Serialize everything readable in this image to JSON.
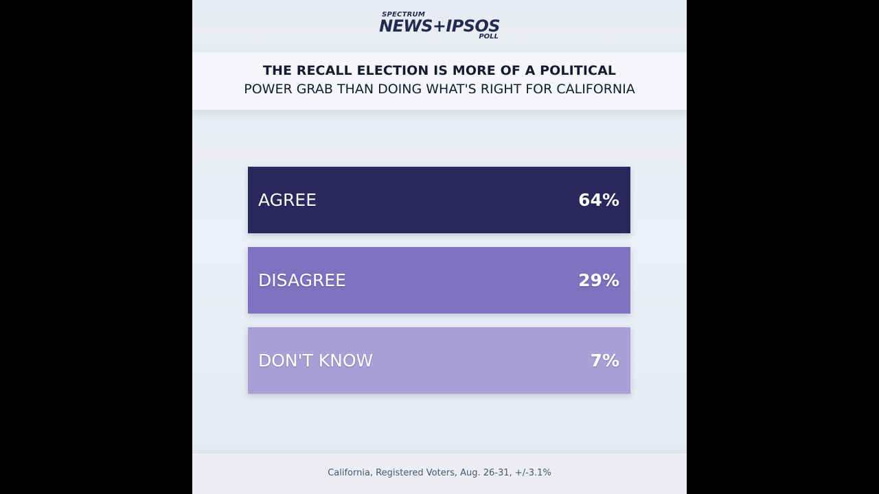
{
  "logo": {
    "top": "SPECTRUM",
    "main": "NEWS+IPSOS",
    "bottom": "POLL"
  },
  "title": {
    "line1": "THE RECALL ELECTION IS MORE OF A POLITICAL",
    "line2": "POWER GRAB THAN DOING WHAT'S RIGHT FOR CALIFORNIA"
  },
  "footer": {
    "note": "California, Registered Voters, Aug. 26-31, +/-3.1%"
  },
  "chart_data": {
    "type": "bar",
    "title": "THE RECALL ELECTION IS MORE OF A POLITICAL POWER GRAB THAN DOING WHAT'S RIGHT FOR CALIFORNIA",
    "categories": [
      "AGREE",
      "DISAGREE",
      "DON'T KNOW"
    ],
    "values": [
      64,
      29,
      7
    ],
    "value_labels": [
      "64%",
      "29%",
      "7%"
    ],
    "unit": "%",
    "colors": [
      "#2b2860",
      "#7f72c0",
      "#aaa0d8"
    ],
    "note": "California, Registered Voters, Aug. 26-31, +/-3.1%"
  }
}
